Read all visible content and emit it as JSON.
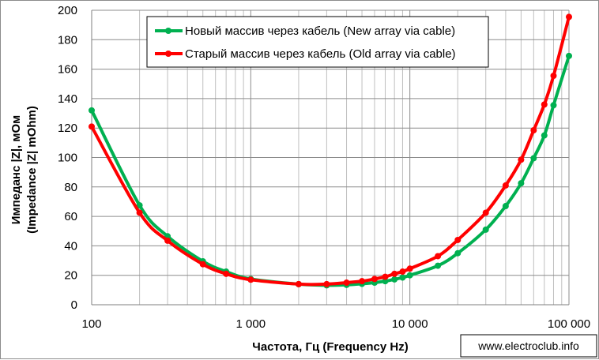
{
  "chart_data": {
    "type": "line",
    "xlabel": "Частота, Гц (Frequency Hz)",
    "ylabel_line1": "Импеданс |Z|, мОм",
    "ylabel_line2": "(Impedance |Z| mOhm)",
    "x_scale": "log",
    "xlim": [
      100,
      100000
    ],
    "ylim": [
      0,
      200
    ],
    "x_ticks": [
      100,
      1000,
      10000,
      100000
    ],
    "x_tick_labels": [
      "100",
      "1 000",
      "10 000",
      "100 000"
    ],
    "y_ticks": [
      0,
      20,
      40,
      60,
      80,
      100,
      120,
      140,
      160,
      180,
      200
    ],
    "y_tick_labels": [
      "0",
      "20",
      "40",
      "60",
      "80",
      "100",
      "120",
      "140",
      "160",
      "180",
      "200"
    ],
    "grid": true,
    "legend_position": "top-center",
    "series": [
      {
        "name": "Новый массив через кабель (New array via cable)",
        "color": "#00b050",
        "points": [
          [
            100,
            132
          ],
          [
            200,
            67.5
          ],
          [
            300,
            46.5
          ],
          [
            500,
            29.5
          ],
          [
            700,
            22.5
          ],
          [
            1000,
            17.5
          ],
          [
            2000,
            14
          ],
          [
            3000,
            13.2
          ],
          [
            4000,
            13.5
          ],
          [
            5000,
            14.2
          ],
          [
            6000,
            15
          ],
          [
            7000,
            16
          ],
          [
            8000,
            17.2
          ],
          [
            9000,
            18.5
          ],
          [
            10000,
            20
          ],
          [
            15000,
            26.5
          ],
          [
            20000,
            35
          ],
          [
            30000,
            51
          ],
          [
            40000,
            67
          ],
          [
            50000,
            82.5
          ],
          [
            60000,
            99.5
          ],
          [
            70000,
            115
          ],
          [
            80000,
            135.5
          ],
          [
            100000,
            169
          ]
        ]
      },
      {
        "name": "Старый массив через кабель (Old array via cable)",
        "color": "#ff0000",
        "points": [
          [
            100,
            121
          ],
          [
            200,
            62.5
          ],
          [
            300,
            43.5
          ],
          [
            500,
            27.5
          ],
          [
            700,
            21
          ],
          [
            1000,
            17
          ],
          [
            2000,
            14
          ],
          [
            3000,
            14
          ],
          [
            4000,
            15
          ],
          [
            5000,
            16
          ],
          [
            6000,
            17.5
          ],
          [
            7000,
            19
          ],
          [
            8000,
            21
          ],
          [
            9000,
            22.5
          ],
          [
            10000,
            24.5
          ],
          [
            15000,
            33
          ],
          [
            20000,
            44
          ],
          [
            30000,
            62.5
          ],
          [
            40000,
            81
          ],
          [
            50000,
            98.5
          ],
          [
            60000,
            118.5
          ],
          [
            70000,
            136
          ],
          [
            80000,
            155.5
          ],
          [
            100000,
            195.5
          ]
        ]
      }
    ]
  },
  "watermark": "www.electroclub.info"
}
